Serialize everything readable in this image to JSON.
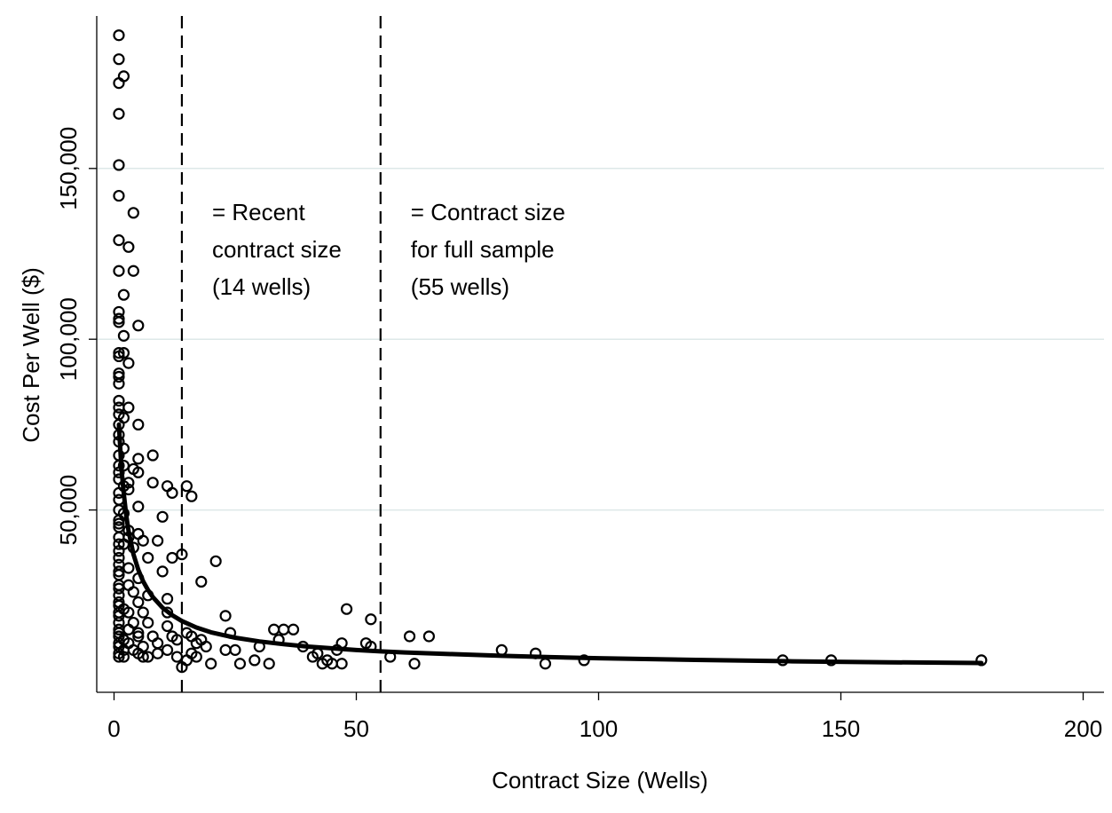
{
  "chart_data": {
    "type": "scatter",
    "xlabel": "Contract Size (Wells)",
    "ylabel": "Cost Per Well ($)",
    "xlim": [
      0,
      205
    ],
    "ylim": [
      0,
      192000
    ],
    "x_ticks": [
      0,
      50,
      100,
      150,
      200
    ],
    "x_tick_labels": [
      "0",
      "50",
      "100",
      "150",
      "200"
    ],
    "y_ticks": [
      50000,
      100000,
      150000
    ],
    "y_tick_labels": [
      "50,000",
      "100,000",
      "150,000"
    ],
    "grid": "horizontal",
    "colors": {
      "marker_stroke": "#000000",
      "fit_line": "#000000",
      "grid": "#dde8e8"
    },
    "reference_lines": [
      {
        "x": 14,
        "label_lines": [
          "= Recent",
          "contract size",
          "(14 wells)"
        ]
      },
      {
        "x": 55,
        "label_lines": [
          "= Contract size",
          "for full sample",
          "(55 wells)"
        ]
      }
    ],
    "series": [
      {
        "type": "scatter",
        "marker": "hollow-circle",
        "points": [
          [
            1,
            189000
          ],
          [
            1,
            182000
          ],
          [
            2,
            177000
          ],
          [
            1,
            175000
          ],
          [
            1,
            166000
          ],
          [
            1,
            151000
          ],
          [
            1,
            142000
          ],
          [
            4,
            137000
          ],
          [
            1,
            129000
          ],
          [
            3,
            127000
          ],
          [
            1,
            120000
          ],
          [
            4,
            120000
          ],
          [
            2,
            113000
          ],
          [
            1,
            108000
          ],
          [
            1,
            106000
          ],
          [
            1,
            105000
          ],
          [
            5,
            104000
          ],
          [
            2,
            101000
          ],
          [
            1,
            96000
          ],
          [
            2,
            96000
          ],
          [
            1,
            95000
          ],
          [
            3,
            93000
          ],
          [
            1,
            90000
          ],
          [
            1,
            89000
          ],
          [
            1,
            87000
          ],
          [
            1,
            82000
          ],
          [
            1,
            80000
          ],
          [
            3,
            80000
          ],
          [
            1,
            78000
          ],
          [
            2,
            77000
          ],
          [
            1,
            75000
          ],
          [
            5,
            75000
          ],
          [
            1,
            72000
          ],
          [
            1,
            70000
          ],
          [
            2,
            68000
          ],
          [
            8,
            66000
          ],
          [
            1,
            66000
          ],
          [
            5,
            65000
          ],
          [
            1,
            63000
          ],
          [
            2,
            63000
          ],
          [
            4,
            62000
          ],
          [
            1,
            61000
          ],
          [
            5,
            61000
          ],
          [
            1,
            59000
          ],
          [
            3,
            58000
          ],
          [
            8,
            58000
          ],
          [
            2,
            57000
          ],
          [
            11,
            57000
          ],
          [
            15,
            57000
          ],
          [
            3,
            56000
          ],
          [
            1,
            55000
          ],
          [
            12,
            55000
          ],
          [
            16,
            54000
          ],
          [
            1,
            53000
          ],
          [
            5,
            51000
          ],
          [
            1,
            50000
          ],
          [
            2,
            49000
          ],
          [
            10,
            48000
          ],
          [
            1,
            47000
          ],
          [
            1,
            46000
          ],
          [
            1,
            45000
          ],
          [
            3,
            44000
          ],
          [
            5,
            43000
          ],
          [
            1,
            42000
          ],
          [
            3,
            42000
          ],
          [
            6,
            41000
          ],
          [
            9,
            41000
          ],
          [
            1,
            40000
          ],
          [
            2,
            40000
          ],
          [
            4,
            39000
          ],
          [
            1,
            38000
          ],
          [
            14,
            37000
          ],
          [
            1,
            36000
          ],
          [
            7,
            36000
          ],
          [
            12,
            36000
          ],
          [
            21,
            35000
          ],
          [
            1,
            34000
          ],
          [
            3,
            33000
          ],
          [
            1,
            32000
          ],
          [
            10,
            32000
          ],
          [
            1,
            31000
          ],
          [
            5,
            30000
          ],
          [
            18,
            29000
          ],
          [
            1,
            28000
          ],
          [
            3,
            28000
          ],
          [
            1,
            27000
          ],
          [
            4,
            26000
          ],
          [
            1,
            25000
          ],
          [
            7,
            25000
          ],
          [
            11,
            24000
          ],
          [
            1,
            23000
          ],
          [
            5,
            23000
          ],
          [
            1,
            22000
          ],
          [
            2,
            21000
          ],
          [
            48,
            21000
          ],
          [
            1,
            20000
          ],
          [
            3,
            20000
          ],
          [
            6,
            20000
          ],
          [
            11,
            20000
          ],
          [
            1,
            19000
          ],
          [
            23,
            19000
          ],
          [
            53,
            18000
          ],
          [
            1,
            17000
          ],
          [
            4,
            17000
          ],
          [
            7,
            17000
          ],
          [
            11,
            16000
          ],
          [
            1,
            15000
          ],
          [
            3,
            15000
          ],
          [
            33,
            15000
          ],
          [
            35,
            15000
          ],
          [
            37,
            15000
          ],
          [
            1,
            14000
          ],
          [
            5,
            14000
          ],
          [
            15,
            14000
          ],
          [
            24,
            14000
          ],
          [
            1,
            13000
          ],
          [
            5,
            13000
          ],
          [
            8,
            13000
          ],
          [
            12,
            13000
          ],
          [
            16,
            13000
          ],
          [
            61,
            13000
          ],
          [
            65,
            13000
          ],
          [
            2,
            12000
          ],
          [
            13,
            12000
          ],
          [
            18,
            12000
          ],
          [
            34,
            12000
          ],
          [
            1,
            11000
          ],
          [
            3,
            11000
          ],
          [
            9,
            11000
          ],
          [
            17,
            11000
          ],
          [
            47,
            11000
          ],
          [
            52,
            11000
          ],
          [
            1,
            10000
          ],
          [
            6,
            10000
          ],
          [
            19,
            10000
          ],
          [
            30,
            10000
          ],
          [
            39,
            10000
          ],
          [
            53,
            10000
          ],
          [
            2,
            9000
          ],
          [
            4,
            9000
          ],
          [
            11,
            9000
          ],
          [
            23,
            9000
          ],
          [
            25,
            9000
          ],
          [
            46,
            9000
          ],
          [
            80,
            9000
          ],
          [
            1,
            8000
          ],
          [
            5,
            8000
          ],
          [
            9,
            8000
          ],
          [
            16,
            8000
          ],
          [
            42,
            8000
          ],
          [
            87,
            8000
          ],
          [
            1,
            7000
          ],
          [
            2,
            7000
          ],
          [
            6,
            7000
          ],
          [
            7,
            7000
          ],
          [
            13,
            7000
          ],
          [
            17,
            7000
          ],
          [
            41,
            7000
          ],
          [
            57,
            7000
          ],
          [
            15,
            6000
          ],
          [
            29,
            6000
          ],
          [
            44,
            6000
          ],
          [
            97,
            6000
          ],
          [
            138,
            6000
          ],
          [
            148,
            6000
          ],
          [
            179,
            6000
          ],
          [
            20,
            5000
          ],
          [
            26,
            5000
          ],
          [
            32,
            5000
          ],
          [
            43,
            5000
          ],
          [
            45,
            5000
          ],
          [
            47,
            5000
          ],
          [
            62,
            5000
          ],
          [
            89,
            5000
          ],
          [
            14,
            4000
          ]
        ]
      },
      {
        "type": "line",
        "name": "fit",
        "style": "solid-thick",
        "x": [
          1,
          1.5,
          2,
          2.5,
          3,
          4,
          5,
          6,
          7,
          8,
          10,
          12,
          14,
          17,
          20,
          25,
          30,
          35,
          40,
          50,
          55,
          60,
          70,
          80,
          90,
          100,
          120,
          140,
          160,
          179
        ],
        "y": [
          75000,
          62500,
          55000,
          48500,
          43800,
          37100,
          32500,
          29100,
          26600,
          24500,
          21400,
          19200,
          17500,
          15600,
          14200,
          12600,
          11500,
          10700,
          10000,
          9000,
          8600,
          8300,
          7800,
          7300,
          6900,
          6600,
          6100,
          5700,
          5400,
          5200
        ]
      }
    ]
  }
}
